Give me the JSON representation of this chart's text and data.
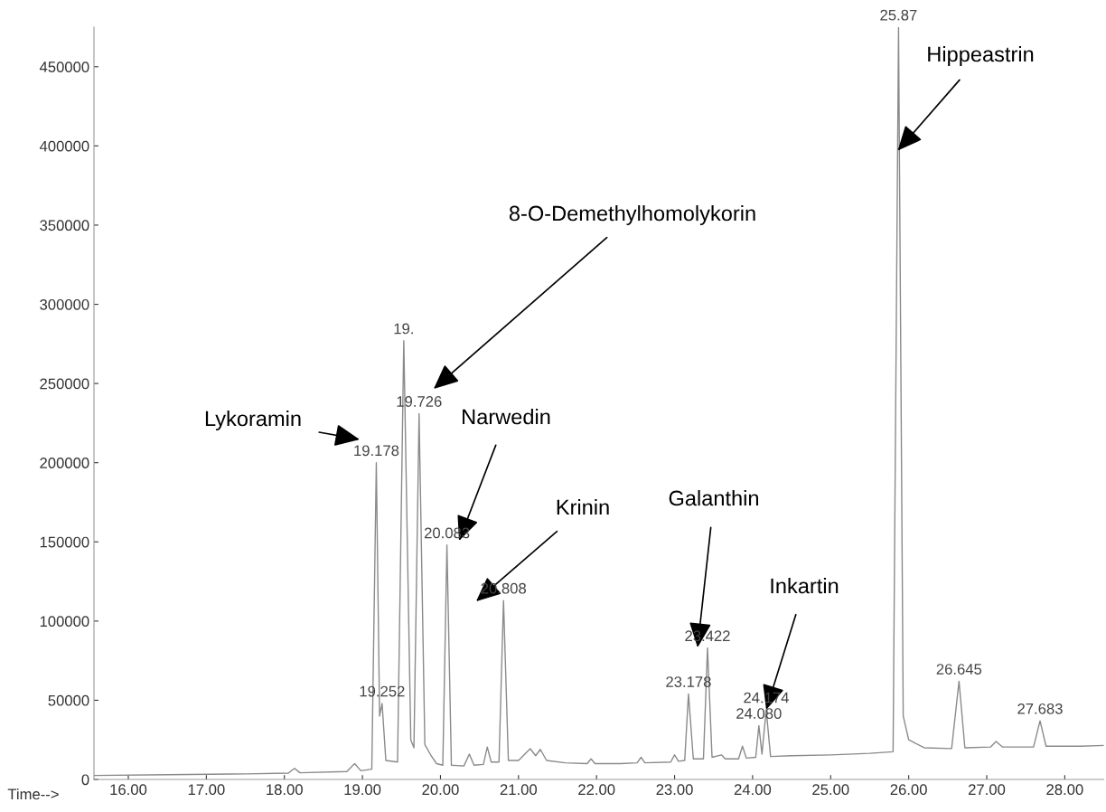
{
  "chart_data": {
    "type": "line",
    "xlabel": "Time-->",
    "xlim": [
      15.56,
      28.5
    ],
    "ylim": [
      0,
      475000
    ],
    "xticks": [
      {
        "value": 16,
        "label": "16.00"
      },
      {
        "value": 17,
        "label": "17.00"
      },
      {
        "value": 18,
        "label": "18.00"
      },
      {
        "value": 19,
        "label": "19.00"
      },
      {
        "value": 20,
        "label": "20.00"
      },
      {
        "value": 21,
        "label": "21.00"
      },
      {
        "value": 22,
        "label": "22.00"
      },
      {
        "value": 23,
        "label": "23.00"
      },
      {
        "value": 24,
        "label": "24.00"
      },
      {
        "value": 25,
        "label": "25.00"
      },
      {
        "value": 26,
        "label": "26.00"
      },
      {
        "value": 27,
        "label": "27.00"
      },
      {
        "value": 28,
        "label": "28.00"
      }
    ],
    "yticks": [
      0,
      50000,
      100000,
      150000,
      200000,
      250000,
      300000,
      350000,
      400000,
      450000
    ],
    "grid": false,
    "legend": false,
    "marker": "none",
    "line_style": "solid",
    "series": [
      {
        "color": "#8a8a8a",
        "x": [
          15.56,
          16.5,
          17.5,
          18.05,
          18.13,
          18.2,
          18.8,
          18.9,
          18.98,
          19.12,
          19.178,
          19.22,
          19.252,
          19.3,
          19.45,
          19.53,
          19.62,
          19.66,
          19.726,
          19.8,
          19.88,
          19.95,
          20.03,
          20.083,
          20.14,
          20.3,
          20.37,
          20.43,
          20.55,
          20.6,
          20.65,
          20.75,
          20.808,
          20.87,
          21.0,
          21.15,
          21.22,
          21.28,
          21.36,
          21.6,
          21.88,
          21.93,
          21.98,
          22.3,
          22.52,
          22.57,
          22.62,
          22.95,
          23.0,
          23.05,
          23.13,
          23.178,
          23.24,
          23.37,
          23.422,
          23.48,
          23.6,
          23.65,
          23.82,
          23.87,
          23.92,
          24.04,
          24.08,
          24.12,
          24.174,
          24.23,
          24.5,
          25.0,
          25.5,
          25.8,
          25.87,
          25.93,
          26.0,
          26.2,
          26.55,
          26.645,
          26.72,
          27.05,
          27.12,
          27.2,
          27.6,
          27.683,
          27.76,
          28.2,
          28.5
        ],
        "values": [
          2500,
          3000,
          3500,
          4000,
          7000,
          4200,
          5000,
          10000,
          5500,
          6500,
          200000,
          40000,
          48000,
          12000,
          11000,
          277000,
          25000,
          20000,
          231000,
          22000,
          15000,
          10000,
          9000,
          148000,
          9000,
          8500,
          16000,
          9000,
          9500,
          20500,
          11000,
          11000,
          113000,
          12000,
          12000,
          19400,
          15000,
          19000,
          12000,
          10500,
          10000,
          13000,
          10000,
          10000,
          10500,
          14000,
          10500,
          11000,
          15500,
          11500,
          12000,
          54000,
          13000,
          13000,
          83000,
          14000,
          15500,
          13000,
          13000,
          21000,
          13500,
          14000,
          34000,
          16000,
          44000,
          14500,
          15000,
          15500,
          16500,
          17500,
          475000,
          40000,
          25000,
          20000,
          19500,
          62000,
          20000,
          20500,
          24000,
          20500,
          20500,
          37000,
          21000,
          21000,
          21500
        ]
      }
    ],
    "annotations": [
      "Lykoramin",
      "8-O-Demethylhomolykorin",
      "Narwedin",
      "Krinin",
      "Galanthin",
      {
        "text": "Inkartin",
        "x": 24.174,
        "y": 44000
      },
      {
        "text": "Hippeastrin",
        "x": 25.86,
        "y": 397000
      },
      {
        "text": "19.178",
        "x": 19.178,
        "y": 200000
      },
      {
        "text": "19.252",
        "x": 19.252,
        "y": 48000
      },
      {
        "text": "19.",
        "x": 19.53,
        "y": 277000
      },
      {
        "text": "19.726",
        "x": 19.726,
        "y": 231000
      },
      {
        "text": "20.083",
        "x": 20.083,
        "y": 148000
      },
      {
        "text": "20.808",
        "x": 20.808,
        "y": 113000
      },
      {
        "text": "23.178",
        "x": 23.178,
        "y": 54000
      },
      {
        "text": "23.422",
        "x": 23.422,
        "y": 83000
      },
      {
        "text": "24.080",
        "x": 24.08,
        "y": 34000
      },
      {
        "text": "24.174",
        "x": 24.174,
        "y": 44000
      },
      {
        "text": "25.87",
        "x": 25.87,
        "y": 475000
      },
      {
        "text": "26.645",
        "x": 26.645,
        "y": 62000
      },
      {
        "text": "27.683",
        "x": 27.683,
        "y": 37000
      }
    ]
  }
}
